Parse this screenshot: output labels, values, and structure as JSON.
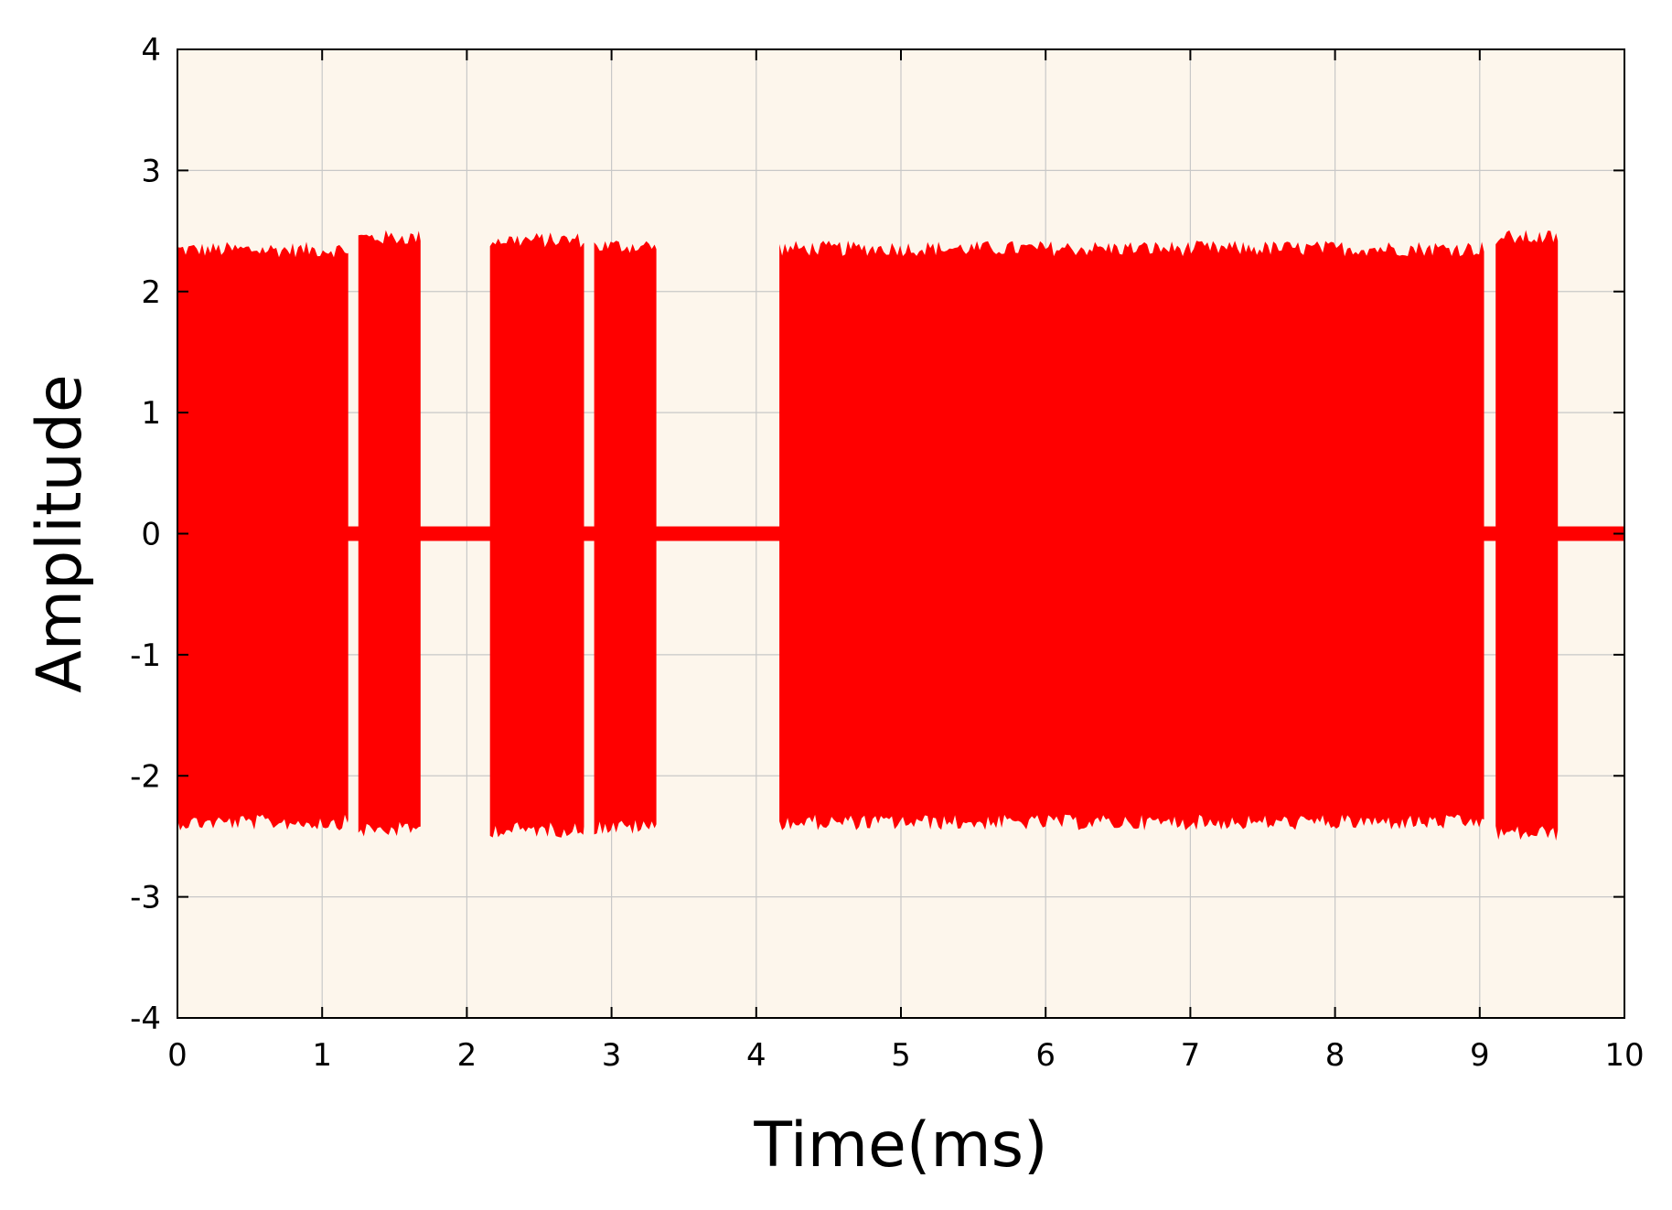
{
  "chart_data": {
    "type": "area",
    "title": "",
    "xlabel": "Time(ms)",
    "ylabel": "Amplitude",
    "xlim": [
      0,
      10
    ],
    "ylim": [
      -4,
      4
    ],
    "xticks": [
      0,
      1,
      2,
      3,
      4,
      5,
      6,
      7,
      8,
      9,
      10
    ],
    "yticks": [
      -4,
      -3,
      -2,
      -1,
      0,
      1,
      2,
      3,
      4
    ],
    "grid": true,
    "legend": "none",
    "series": [
      {
        "color": "#ff0000",
        "baseline_noise_amplitude": 0.06,
        "bursts": [
          {
            "start": 0.0,
            "end": 1.18,
            "upper": 2.32,
            "lower": -2.36
          },
          {
            "start": 1.25,
            "end": 1.68,
            "upper": 2.42,
            "lower": -2.42
          },
          {
            "start": 2.16,
            "end": 2.81,
            "upper": 2.4,
            "lower": -2.42
          },
          {
            "start": 2.88,
            "end": 3.31,
            "upper": 2.35,
            "lower": -2.4
          },
          {
            "start": 4.16,
            "end": 9.03,
            "upper": 2.33,
            "lower": -2.36
          },
          {
            "start": 9.11,
            "end": 9.54,
            "upper": 2.42,
            "lower": -2.45
          }
        ]
      }
    ],
    "colors": {
      "plot_background": "#fdf6ec",
      "grid": "#c8c8c8",
      "axis": "#000000",
      "signal": "#ff0000"
    }
  }
}
